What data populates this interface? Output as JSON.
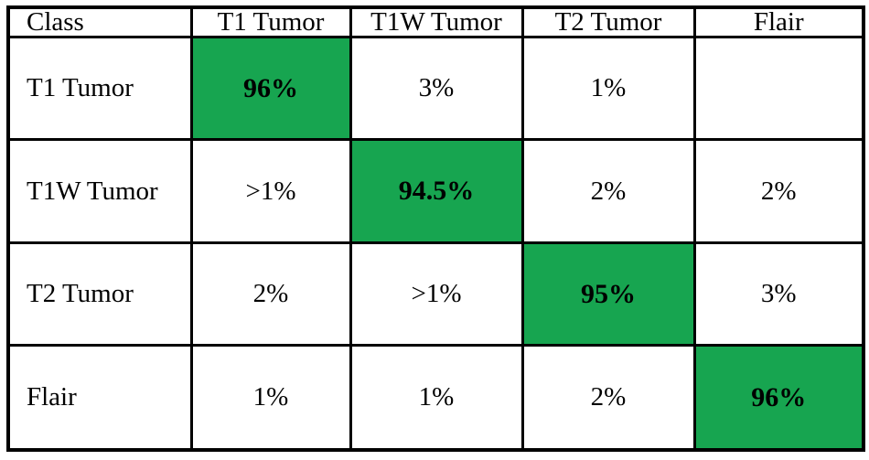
{
  "table": {
    "header": [
      "Class",
      "T1 Tumor",
      "T1W Tumor",
      "T2 Tumor",
      "Flair"
    ],
    "rows": [
      {
        "label": "T1 Tumor",
        "values": [
          "96%",
          "3%",
          "1%",
          ""
        ],
        "highlight_index": 0
      },
      {
        "label": "T1W Tumor",
        "values": [
          ">1%",
          "94.5%",
          "2%",
          "2%"
        ],
        "highlight_index": 1
      },
      {
        "label": "T2 Tumor",
        "values": [
          "2%",
          ">1%",
          "95%",
          "3%"
        ],
        "highlight_index": 2
      },
      {
        "label": "Flair",
        "values": [
          "1%",
          "1%",
          "2%",
          "96%"
        ],
        "highlight_index": 3
      }
    ],
    "colors": {
      "highlight_green": "#17a550",
      "border": "#000000",
      "background": "#ffffff",
      "text": "#000000"
    }
  },
  "chart_data": {
    "type": "table",
    "title": "",
    "columns": [
      "Class",
      "T1 Tumor",
      "T1W Tumor",
      "T2 Tumor",
      "Flair"
    ],
    "rows": [
      [
        "T1 Tumor",
        "96%",
        "3%",
        "1%",
        ""
      ],
      [
        "T1W Tumor",
        ">1%",
        "94.5%",
        "2%",
        "2%"
      ],
      [
        "T2 Tumor",
        "2%",
        ">1%",
        "95%",
        "3%"
      ],
      [
        "Flair",
        "1%",
        "1%",
        "2%",
        "96%"
      ]
    ],
    "diagonal_values_percent": [
      96,
      94.5,
      95,
      96
    ],
    "highlighted_cells": "diagonal",
    "highlight_color": "#17a550",
    "notes": "Confusion-matrix style classification accuracy table; diagonal cells highlighted green and bold"
  }
}
